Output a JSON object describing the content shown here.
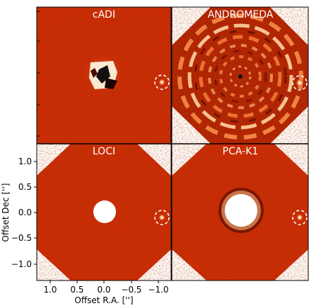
{
  "panels": [
    {
      "title": "cADI"
    },
    {
      "title": "ANDROMEDA"
    },
    {
      "title": "LOCI"
    },
    {
      "title": "PCA-K1"
    }
  ],
  "axes": {
    "xlabel": "Offset R.A. ['']",
    "ylabel": "Offset Dec ['']",
    "xticks": [
      "1.0",
      "0.5",
      "0.0",
      "−0.5",
      "−1.0"
    ],
    "yticks": [
      "1.0",
      "0.5",
      "0.0",
      "−0.5",
      "−1.0"
    ]
  },
  "colors": {
    "background_red": "#c82a05",
    "dark_red": "#8f1500",
    "highlight": "#fff3d6",
    "marker": "#ffffff"
  }
}
